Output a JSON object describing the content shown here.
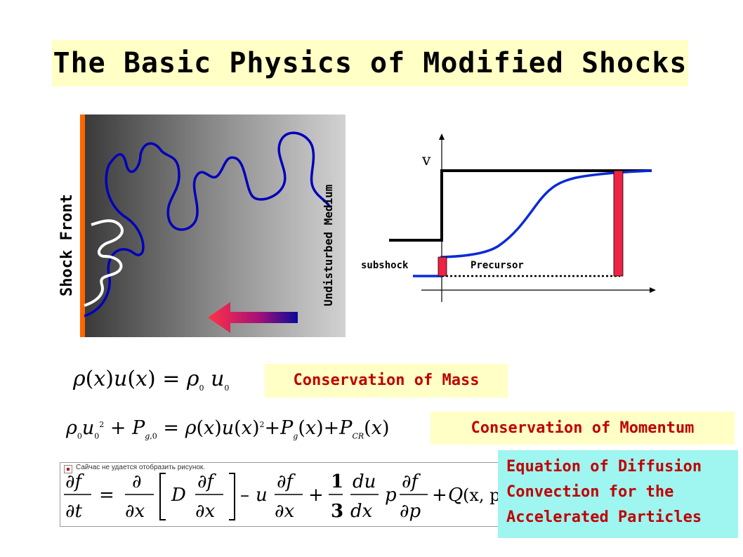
{
  "title": "The Basic Physics of Modified Shocks",
  "left_figure": {
    "shock_front_label": "Shock Front",
    "undisturbed_label": "Undisturbed Medium"
  },
  "right_figure": {
    "axis_label": "v",
    "subshock_label": "subshock",
    "precursor_label": "Precursor"
  },
  "labels": {
    "mass": "Conservation of Mass",
    "momentum": "Conservation of Momentum",
    "diffusion_line1": "Equation of Diffusion",
    "diffusion_line2": "Convection for the",
    "diffusion_line3": "Accelerated Particles"
  },
  "broken_image_text": "Сайчас не удается отобразить рисунок.",
  "colors": {
    "title_bg": "#ffffc6",
    "label_text": "#c00000",
    "cyan_bg": "#9ff5f0",
    "blue_curve": "#0000cc",
    "shock_orange": "#ff6600",
    "bar_red": "#ee2244"
  }
}
